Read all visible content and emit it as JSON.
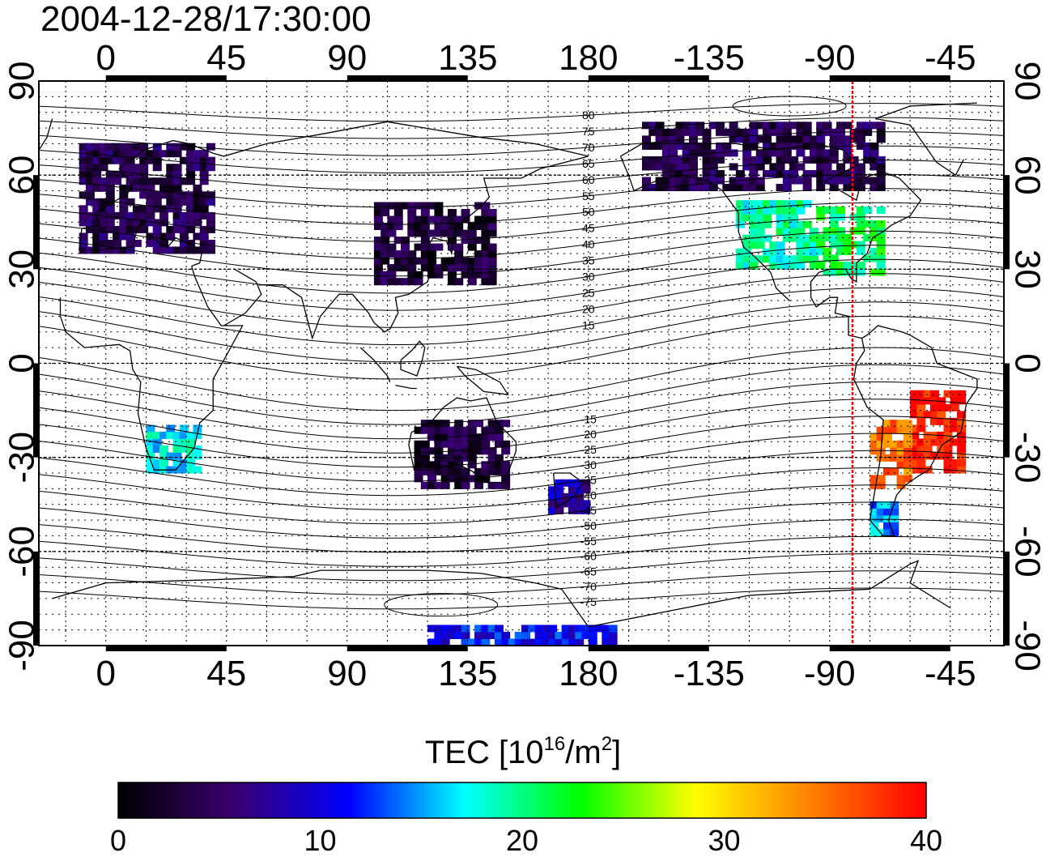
{
  "title": "2004-12-28/17:30:00",
  "axes": {
    "top_ticks": [
      "0",
      "45",
      "90",
      "135",
      "180",
      "-135",
      "-90",
      "-45"
    ],
    "bottom_ticks": [
      "0",
      "45",
      "90",
      "135",
      "180",
      "-135",
      "-90",
      "-45"
    ],
    "left_ticks": [
      "90",
      "60",
      "30",
      "0",
      "-30",
      "-60",
      "-90"
    ],
    "right_ticks": [
      "90",
      "60",
      "30",
      "0",
      "-30",
      "-60",
      "-90"
    ]
  },
  "contour_labels": [
    "80",
    "75",
    "70",
    "65",
    "60",
    "55",
    "50",
    "45",
    "40",
    "35",
    "30",
    "25",
    "20",
    "15",
    "-15",
    "-20",
    "-25",
    "-30",
    "-35",
    "-40",
    "-45",
    "-50",
    "-55",
    "-60",
    "-65",
    "-70",
    "-75"
  ],
  "colorbar": {
    "title_main": "TEC  [10",
    "title_exp1": "16",
    "title_mid": "/m",
    "title_exp2": "2",
    "title_end": "]",
    "labels": [
      "0",
      "10",
      "20",
      "30",
      "40"
    ],
    "colors": [
      "#000000",
      "#3a0070",
      "#0000ff",
      "#00ffff",
      "#00ff00",
      "#ffff00",
      "#ff8000",
      "#ff0000"
    ]
  },
  "chart_data": {
    "type": "heatmap",
    "title": "2004-12-28/17:30:00",
    "x_axis_ticks": [
      0,
      45,
      90,
      135,
      180,
      -135,
      -90,
      -45
    ],
    "y_axis_ticks": [
      90,
      60,
      30,
      0,
      -30,
      -60,
      -90
    ],
    "xlim": [
      -25,
      335
    ],
    "ylim": [
      -90,
      90
    ],
    "grid": true,
    "color_scale": {
      "min": 0,
      "max": 40,
      "label": "TEC  [10^16/m^2]"
    },
    "meridian_marker_lon": -80,
    "tec_regions": [
      {
        "lon_min": -10,
        "lon_max": 40,
        "lat_min": 35,
        "lat_max": 70,
        "tec": 4
      },
      {
        "lon_min": 100,
        "lon_max": 145,
        "lat_min": 25,
        "lat_max": 50,
        "tec": 3
      },
      {
        "lon_min": 235,
        "lon_max": 265,
        "lat_min": 30,
        "lat_max": 50,
        "tec": 19
      },
      {
        "lon_min": 265,
        "lon_max": 290,
        "lat_min": 28,
        "lat_max": 48,
        "tec": 21
      },
      {
        "lon_min": 200,
        "lon_max": 290,
        "lat_min": 55,
        "lat_max": 75,
        "tec": 4
      },
      {
        "lon_min": 300,
        "lon_max": 320,
        "lat_min": -35,
        "lat_max": -10,
        "tec": 39
      },
      {
        "lon_min": 285,
        "lon_max": 300,
        "lat_min": -40,
        "lat_max": -20,
        "tec": 35
      },
      {
        "lon_min": 15,
        "lon_max": 35,
        "lat_min": -35,
        "lat_max": -20,
        "tec": 17
      },
      {
        "lon_min": 115,
        "lon_max": 150,
        "lat_min": -40,
        "lat_max": -20,
        "tec": 3
      },
      {
        "lon_min": 165,
        "lon_max": 180,
        "lat_min": -48,
        "lat_max": -38,
        "tec": 8
      },
      {
        "lon_min": 285,
        "lon_max": 295,
        "lat_min": -55,
        "lat_max": -45,
        "tec": 15
      },
      {
        "lon_min": 120,
        "lon_max": 190,
        "lat_min": -90,
        "lat_max": -85,
        "tec": 11
      }
    ]
  }
}
